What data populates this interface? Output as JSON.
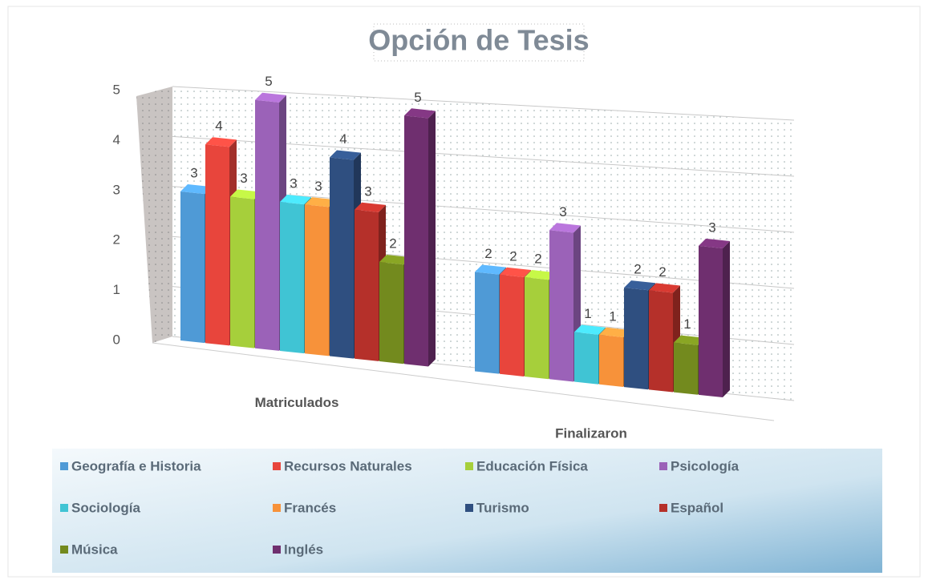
{
  "chart_data": {
    "type": "bar3d",
    "title": "Opción de Tesis",
    "categories": [
      "Matriculados",
      "Finalizaron"
    ],
    "series": [
      {
        "name": "Geografía e Historia",
        "color": "#4f9ad6",
        "values": [
          3,
          2
        ]
      },
      {
        "name": "Recursos Naturales",
        "color": "#e8453c",
        "values": [
          4,
          2
        ]
      },
      {
        "name": "Educación Física",
        "color": "#a6cf3b",
        "values": [
          3,
          2
        ]
      },
      {
        "name": "Psicología",
        "color": "#9b62b8",
        "values": [
          5,
          3
        ]
      },
      {
        "name": "Sociología",
        "color": "#40c4d4",
        "values": [
          3,
          1
        ]
      },
      {
        "name": "Francés",
        "color": "#f7923a",
        "values": [
          3,
          1
        ]
      },
      {
        "name": "Turismo",
        "color": "#2f4f80",
        "values": [
          4,
          2
        ]
      },
      {
        "name": "Español",
        "color": "#b5302a",
        "values": [
          3,
          2
        ]
      },
      {
        "name": "Música",
        "color": "#738a1e",
        "values": [
          2,
          1
        ]
      },
      {
        "name": "Inglés",
        "color": "#6f2f6f",
        "values": [
          5,
          3
        ]
      }
    ],
    "ylim": [
      0,
      5
    ],
    "yticks": [
      0,
      1,
      2,
      3,
      4,
      5
    ],
    "grid": true,
    "legend": "bottom"
  }
}
